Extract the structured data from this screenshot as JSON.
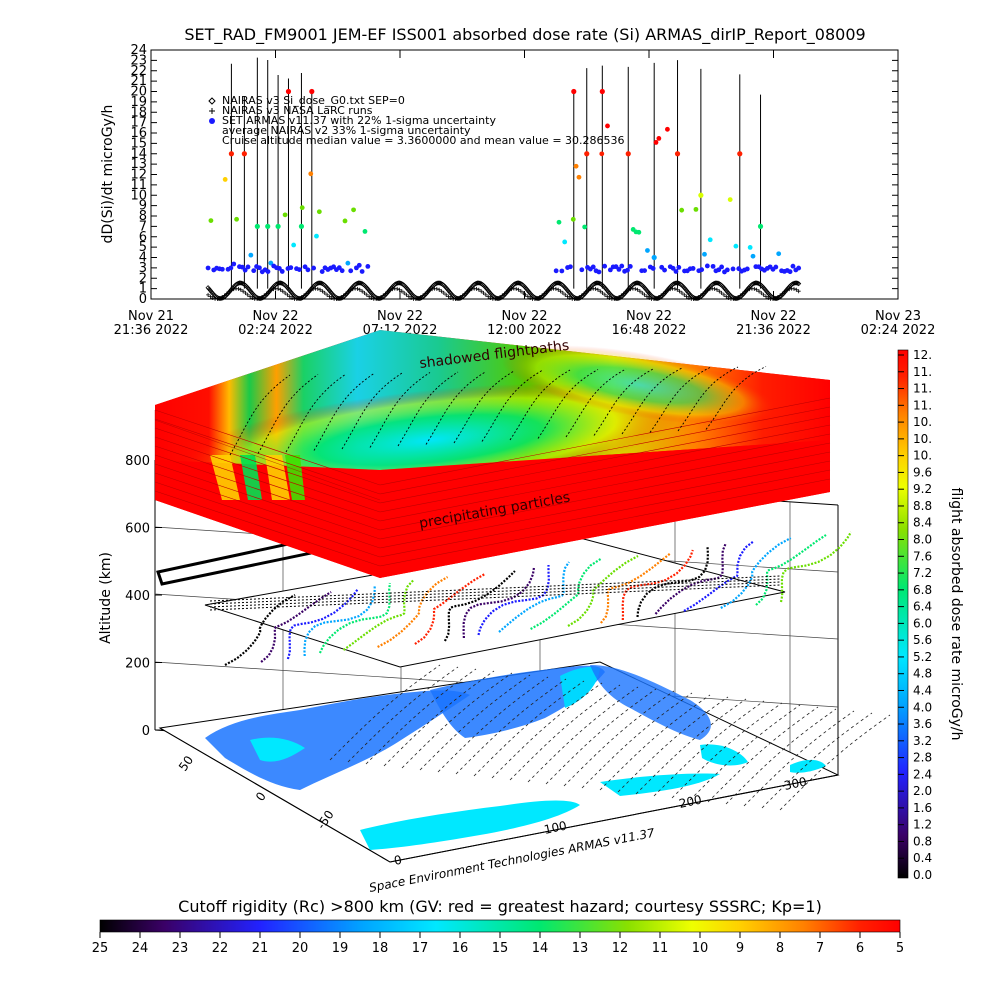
{
  "chart_data": [
    {
      "type": "scatter",
      "title": "SET_RAD_FM9001   JEM-EF ISS001 absorbed dose rate (Si) ARMAS_dirIP_Report_08009",
      "ylabel": "dD(Si)/dt microGy/h",
      "ylim": [
        0,
        24
      ],
      "yticks": [
        "0",
        "1",
        "2",
        "3",
        "4",
        "5",
        "6",
        "7",
        "8",
        "9",
        "10",
        "11",
        "12",
        "13",
        "14",
        "15",
        "16",
        "17",
        "18",
        "19",
        "20",
        "21",
        "22",
        "23",
        "24"
      ],
      "xticks": [
        {
          "line1": "Nov 21",
          "line2": "21:36  2022"
        },
        {
          "line1": "Nov 22",
          "line2": "02:24  2022"
        },
        {
          "line1": "Nov 22",
          "line2": "07:12  2022"
        },
        {
          "line1": "Nov 22",
          "line2": "12:00  2022"
        },
        {
          "line1": "Nov 22",
          "line2": "16:48  2022"
        },
        {
          "line1": "Nov 22",
          "line2": "21:36  2022"
        },
        {
          "line1": "Nov 23",
          "line2": "02:24  2022"
        }
      ],
      "x_hours_range": [
        0,
        28.8
      ],
      "legend": [
        {
          "symbol": "diamond",
          "text": "NAIRAS v3 Si_dose_G0.txt SEP=0"
        },
        {
          "symbol": "plus",
          "text": "NAIRAS v3 NASA LaRC runs"
        },
        {
          "symbol": "dot",
          "text": "SET  ARMAS v11.37 with 22% 1-sigma uncertainty"
        },
        {
          "symbol": "none",
          "text": "average NAIRAS v2 33% 1-sigma uncertainty"
        },
        {
          "symbol": "none",
          "text": "Cruise altitude median value = 3.3600000 and mean value = 30.286536"
        }
      ],
      "measured_median": 3.36,
      "measured_mean": 30.286536,
      "data_start_hour": 2.2,
      "data_end_hour": 25.0,
      "colorbar": {
        "label": "flight absorbed dose rate microGy/h",
        "ticks": [
          "12.",
          "11.",
          "11.",
          "11.",
          "10.",
          "10.",
          "10.",
          "9.6",
          "9.2",
          "8.8",
          "8.4",
          "8.0",
          "7.6",
          "7.2",
          "6.8",
          "6.4",
          "6.0",
          "5.6",
          "5.2",
          "4.8",
          "4.4",
          "4.0",
          "3.6",
          "3.2",
          "2.8",
          "2.4",
          "2.0",
          "1.6",
          "1.2",
          "0.8",
          "0.4",
          "0.0"
        ]
      }
    },
    {
      "type": "heatmap",
      "zlabel": "Altitude (km)",
      "zticks": [
        "0",
        "200",
        "400",
        "600",
        "800"
      ],
      "lat_ticks": [
        "50",
        "0",
        "-50"
      ],
      "lon_ticks": [
        "0",
        "100",
        "200",
        "300"
      ],
      "annotations": [
        "shadowed flightpaths",
        "precipitating particles"
      ],
      "credit": "Space Environment Technologies ARMAS v11.37"
    },
    {
      "type": "colorbar",
      "label": "Cutoff rigidity (Rc) >800 km (GV: red = greatest hazard; courtesy SSSRC; Kp=1)",
      "ticks": [
        "25",
        "24",
        "23",
        "22",
        "21",
        "20",
        "19",
        "18",
        "17",
        "16",
        "15",
        "14",
        "13",
        "12",
        "11",
        "10",
        "9",
        "8",
        "7",
        "6",
        "5"
      ]
    }
  ],
  "colors": {
    "scale": [
      "#000000",
      "#3a0066",
      "#1a1aff",
      "#00a6ff",
      "#00e8ff",
      "#00e870",
      "#6ade00",
      "#d8ff00",
      "#ffd000",
      "#ff8000",
      "#ff2000",
      "#ff0000"
    ]
  }
}
